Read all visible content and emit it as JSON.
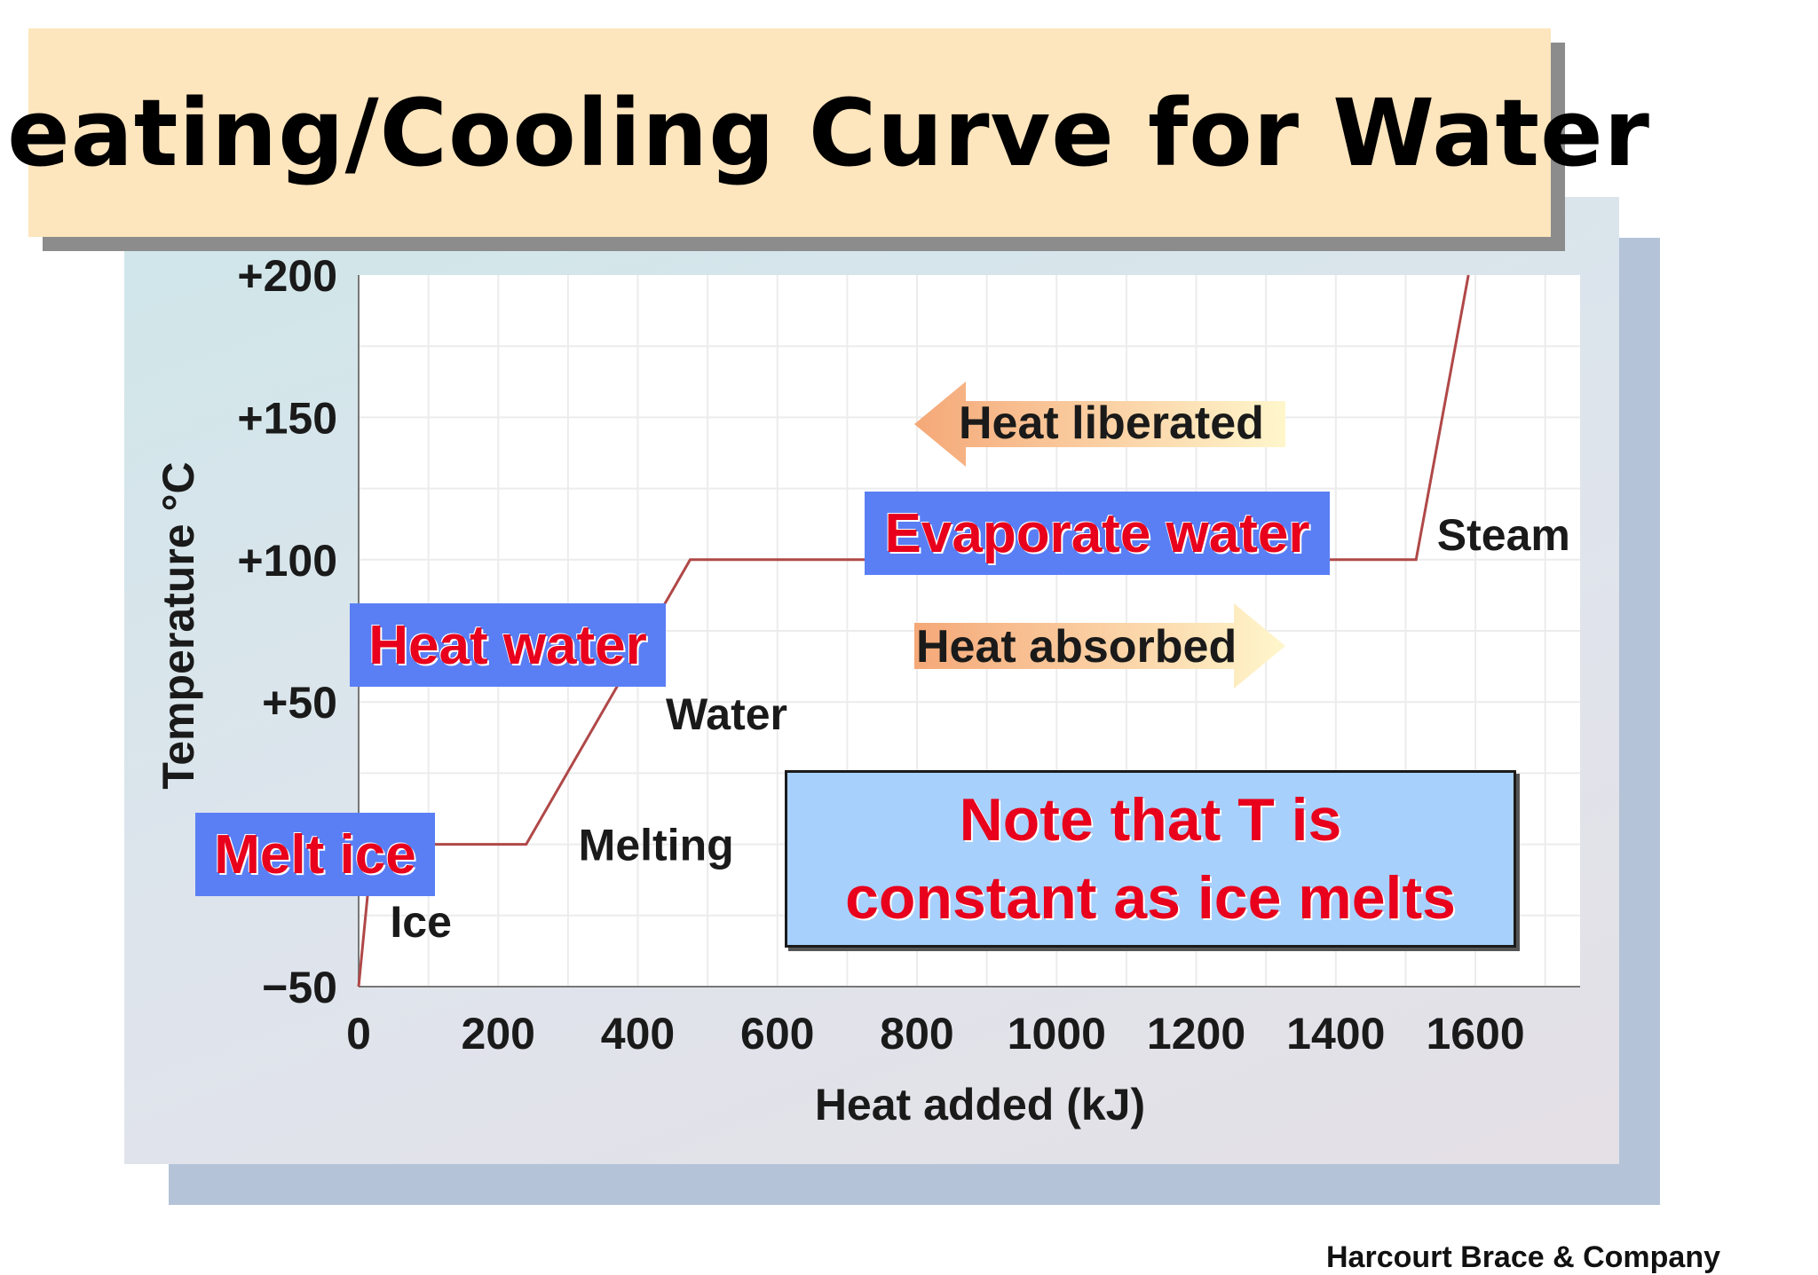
{
  "title": "Heating/Cooling Curve for Water",
  "chart_data": {
    "type": "line",
    "xlabel": "Heat added (kJ)",
    "ylabel": "Temperature °C",
    "xlim": [
      0,
      1750
    ],
    "ylim": [
      -50,
      200
    ],
    "x_ticks": [
      {
        "value": 0,
        "label": "0"
      },
      {
        "value": 200,
        "label": "200"
      },
      {
        "value": 400,
        "label": "400"
      },
      {
        "value": 600,
        "label": "600"
      },
      {
        "value": 800,
        "label": "800"
      },
      {
        "value": 1000,
        "label": "1000"
      },
      {
        "value": 1200,
        "label": "1200"
      },
      {
        "value": 1400,
        "label": "1400"
      },
      {
        "value": 1600,
        "label": "1600"
      }
    ],
    "y_ticks": [
      {
        "value": -50,
        "label": "−50"
      },
      {
        "value": 50,
        "label": "+50"
      },
      {
        "value": 100,
        "label": "+100"
      },
      {
        "value": 150,
        "label": "+150"
      },
      {
        "value": 200,
        "label": "+200"
      }
    ],
    "series": [
      {
        "points": [
          {
            "x": 0,
            "y": -50
          },
          {
            "x": 20,
            "y": 0
          },
          {
            "x": 240,
            "y": 0
          },
          {
            "x": 475,
            "y": 100
          },
          {
            "x": 1515,
            "y": 100
          },
          {
            "x": 1590,
            "y": 200
          }
        ]
      }
    ],
    "phase_labels": [
      {
        "text": "Ice",
        "x": 45,
        "y": -27
      },
      {
        "text": "Melting",
        "x": 315,
        "y": 0
      },
      {
        "text": "Water",
        "x": 440,
        "y": 46
      },
      {
        "text": "Steam",
        "x": 1545,
        "y": 109
      }
    ],
    "grid": true,
    "legend": "none"
  },
  "labels": {
    "melt_ice": "Melt ice",
    "heat_water": "Heat water",
    "evaporate_water": "Evaporate water",
    "heat_liberated": "Heat liberated",
    "heat_absorbed": "Heat absorbed",
    "note_line1": "Note that T is",
    "note_line2": "constant as ice melts"
  },
  "credit": "Harcourt Brace & Company",
  "colors": {
    "curve": "#b04848",
    "label_bg": "#5a7ff5",
    "label_text": "#e8001c",
    "note_bg": "#a8d0fc",
    "title_bg": "#fde5bd",
    "arrow_light": "#fff6cc",
    "arrow_dark": "#f5a878"
  }
}
